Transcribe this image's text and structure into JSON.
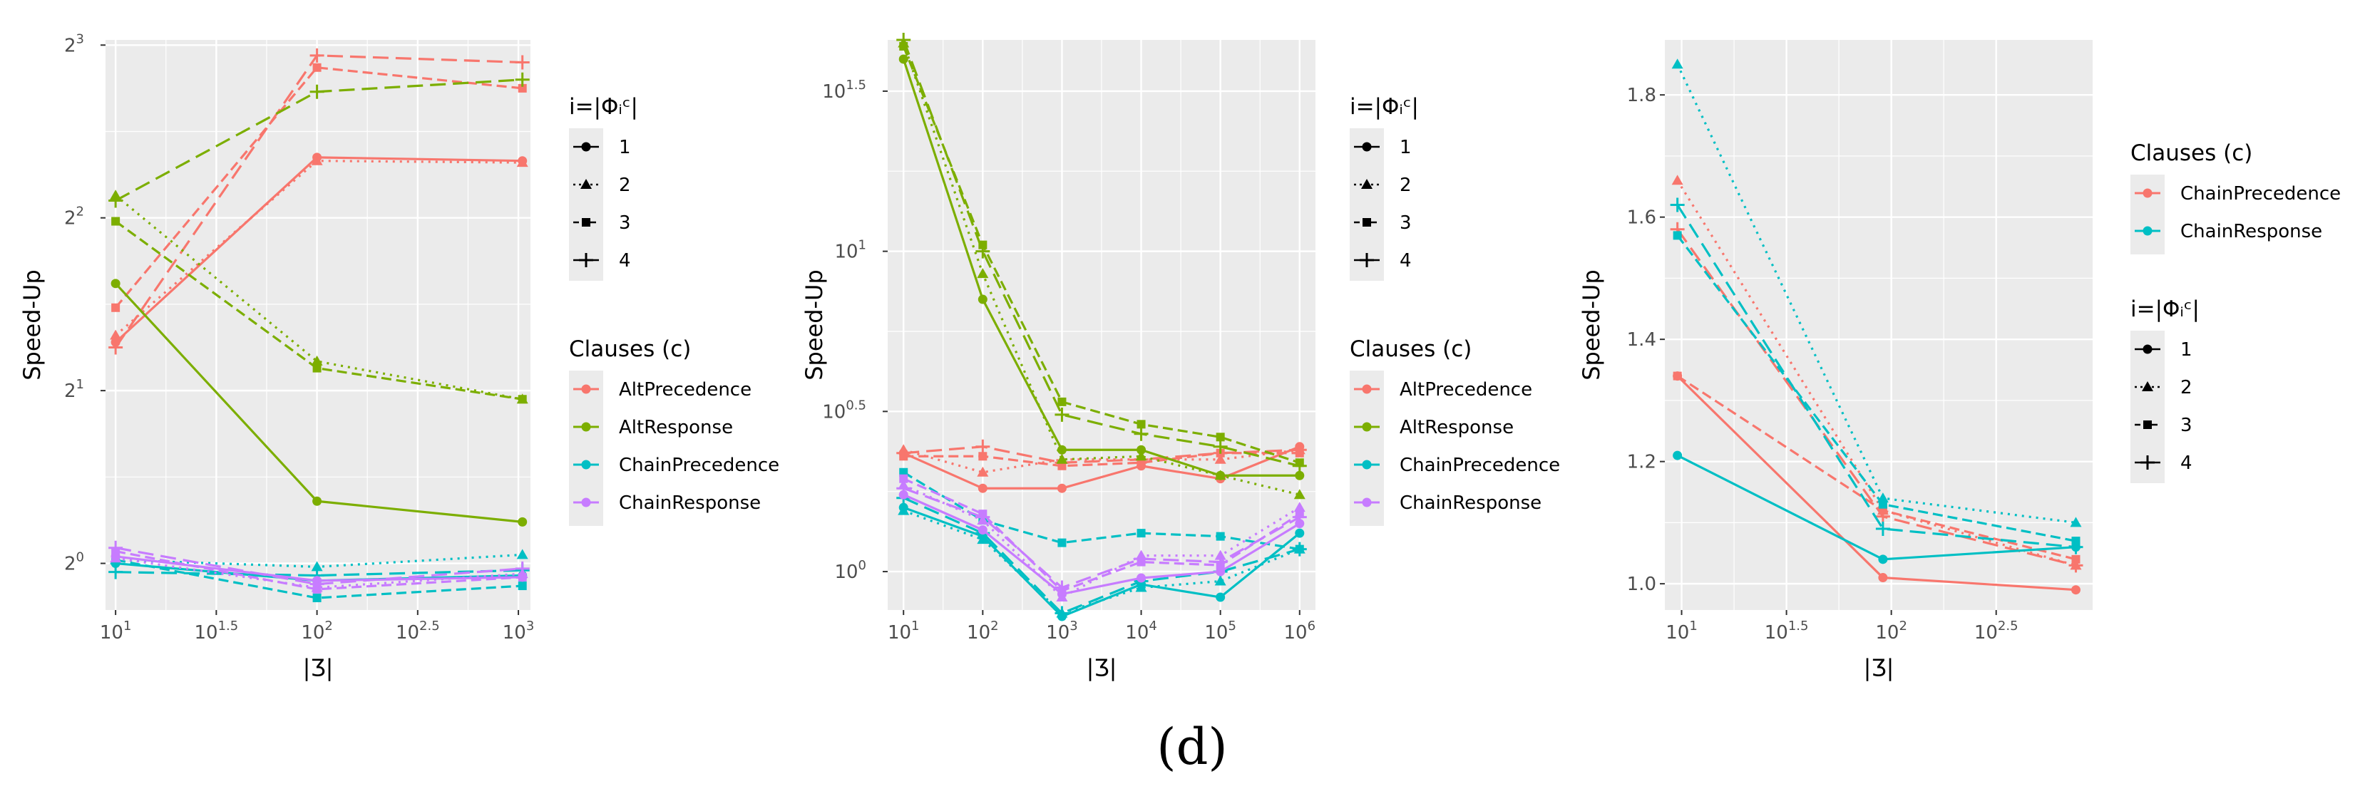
{
  "caption": "(d)",
  "legend_shapes_title": "i=|Φᵢᶜ|",
  "legend_clauses_title": "Clauses (c)",
  "colors": {
    "AltPrecedence": "#f8766d",
    "AltResponse": "#7cae00",
    "ChainPrecedence": "#00bfc4",
    "ChainResponse": "#c77cff",
    "ChainPrecedence_2": "#f8766d",
    "ChainResponse_2": "#00bfc4"
  },
  "chart_data": [
    {
      "type": "line",
      "ylabel": "Speed-Up",
      "xlabel": "|Ʒ|",
      "xscale": "log10",
      "yscale": "log2",
      "xlim": [
        0.95,
        3.06
      ],
      "ylim": [
        -0.27,
        3.03
      ],
      "x_ticks": [
        {
          "v": 1,
          "base": "10",
          "exp": "1"
        },
        {
          "v": 1.5,
          "base": "10",
          "exp": "1.5"
        },
        {
          "v": 2,
          "base": "10",
          "exp": "2"
        },
        {
          "v": 2.5,
          "base": "10",
          "exp": "2.5"
        },
        {
          "v": 3,
          "base": "10",
          "exp": "3"
        }
      ],
      "y_ticks": [
        {
          "v": 0,
          "base": "2",
          "exp": "0"
        },
        {
          "v": 1,
          "base": "2",
          "exp": "1"
        },
        {
          "v": 2,
          "base": "2",
          "exp": "2"
        },
        {
          "v": 3,
          "base": "2",
          "exp": "3"
        }
      ],
      "shapes_legend_position": "right-top",
      "clauses_legend_position": "right-middle",
      "shape_labels": [
        "1",
        "2",
        "3",
        "4"
      ],
      "clause_labels": [
        "AltPrecedence",
        "AltResponse",
        "ChainPrecedence",
        "ChainResponse"
      ],
      "series": [
        {
          "clause": "AltPrecedence",
          "i": 1,
          "x": [
            1.0,
            2.0,
            3.02
          ],
          "y": [
            1.28,
            2.35,
            2.33
          ]
        },
        {
          "clause": "AltPrecedence",
          "i": 2,
          "x": [
            1.0,
            2.0,
            3.02
          ],
          "y": [
            1.32,
            2.33,
            2.32
          ]
        },
        {
          "clause": "AltPrecedence",
          "i": 3,
          "x": [
            1.0,
            2.0,
            3.02
          ],
          "y": [
            1.48,
            2.87,
            2.75
          ]
        },
        {
          "clause": "AltPrecedence",
          "i": 4,
          "x": [
            1.0,
            2.0,
            3.02
          ],
          "y": [
            1.25,
            2.94,
            2.9
          ]
        },
        {
          "clause": "AltResponse",
          "i": 1,
          "x": [
            1.0,
            2.0,
            3.02
          ],
          "y": [
            1.62,
            0.36,
            0.24
          ]
        },
        {
          "clause": "AltResponse",
          "i": 2,
          "x": [
            1.0,
            2.0,
            3.02
          ],
          "y": [
            2.13,
            1.17,
            0.95
          ]
        },
        {
          "clause": "AltResponse",
          "i": 3,
          "x": [
            1.0,
            2.0,
            3.02
          ],
          "y": [
            1.98,
            1.13,
            0.95
          ]
        },
        {
          "clause": "AltResponse",
          "i": 4,
          "x": [
            1.0,
            2.0,
            3.02
          ],
          "y": [
            2.1,
            2.73,
            2.8
          ]
        },
        {
          "clause": "ChainPrecedence",
          "i": 1,
          "x": [
            1.0,
            2.0,
            3.02
          ],
          "y": [
            0.0,
            -0.1,
            -0.07
          ]
        },
        {
          "clause": "ChainPrecedence",
          "i": 2,
          "x": [
            1.0,
            2.0,
            3.02
          ],
          "y": [
            0.02,
            -0.02,
            0.05
          ]
        },
        {
          "clause": "ChainPrecedence",
          "i": 3,
          "x": [
            1.0,
            2.0,
            3.02
          ],
          "y": [
            0.02,
            -0.2,
            -0.13
          ]
        },
        {
          "clause": "ChainPrecedence",
          "i": 4,
          "x": [
            1.0,
            2.0,
            3.02
          ],
          "y": [
            -0.05,
            -0.07,
            -0.04
          ]
        },
        {
          "clause": "ChainResponse",
          "i": 1,
          "x": [
            1.0,
            2.0,
            3.02
          ],
          "y": [
            0.04,
            -0.1,
            -0.08
          ]
        },
        {
          "clause": "ChainResponse",
          "i": 2,
          "x": [
            1.0,
            2.0,
            3.02
          ],
          "y": [
            0.03,
            -0.14,
            -0.06
          ]
        },
        {
          "clause": "ChainResponse",
          "i": 3,
          "x": [
            1.0,
            2.0,
            3.02
          ],
          "y": [
            0.07,
            -0.15,
            -0.08
          ]
        },
        {
          "clause": "ChainResponse",
          "i": 4,
          "x": [
            1.0,
            2.0,
            3.02
          ],
          "y": [
            0.09,
            -0.12,
            -0.03
          ]
        }
      ]
    },
    {
      "type": "line",
      "ylabel": "Speed-Up",
      "xlabel": "|Ʒ|",
      "xscale": "log10",
      "yscale": "log10",
      "xlim": [
        0.8,
        6.2
      ],
      "ylim": [
        -0.12,
        1.66
      ],
      "x_ticks": [
        {
          "v": 1,
          "base": "10",
          "exp": "1"
        },
        {
          "v": 2,
          "base": "10",
          "exp": "2"
        },
        {
          "v": 3,
          "base": "10",
          "exp": "3"
        },
        {
          "v": 4,
          "base": "10",
          "exp": "4"
        },
        {
          "v": 5,
          "base": "10",
          "exp": "5"
        },
        {
          "v": 6,
          "base": "10",
          "exp": "6"
        }
      ],
      "y_ticks": [
        {
          "v": 0,
          "base": "10",
          "exp": "0"
        },
        {
          "v": 0.5,
          "base": "10",
          "exp": "0.5"
        },
        {
          "v": 1,
          "base": "10",
          "exp": "1"
        },
        {
          "v": 1.5,
          "base": "10",
          "exp": "1.5"
        }
      ],
      "shapes_legend_position": "right-top",
      "clauses_legend_position": "right-middle",
      "shape_labels": [
        "1",
        "2",
        "3",
        "4"
      ],
      "clause_labels": [
        "AltPrecedence",
        "AltResponse",
        "ChainPrecedence",
        "ChainResponse"
      ],
      "series": [
        {
          "clause": "AltPrecedence",
          "i": 1,
          "x": [
            1,
            2,
            3,
            4,
            5,
            6
          ],
          "y": [
            0.37,
            0.26,
            0.26,
            0.33,
            0.29,
            0.39
          ]
        },
        {
          "clause": "AltPrecedence",
          "i": 2,
          "x": [
            1,
            2,
            3,
            4,
            5,
            6
          ],
          "y": [
            0.38,
            0.31,
            0.35,
            0.35,
            0.35,
            0.38
          ]
        },
        {
          "clause": "AltPrecedence",
          "i": 3,
          "x": [
            1,
            2,
            3,
            4,
            5,
            6
          ],
          "y": [
            0.36,
            0.36,
            0.33,
            0.34,
            0.37,
            0.37
          ]
        },
        {
          "clause": "AltPrecedence",
          "i": 4,
          "x": [
            1,
            2,
            3,
            4,
            5,
            6
          ],
          "y": [
            0.37,
            0.39,
            0.34,
            0.35,
            0.37,
            0.38
          ]
        },
        {
          "clause": "AltResponse",
          "i": 1,
          "x": [
            1,
            2,
            3,
            4,
            5,
            6
          ],
          "y": [
            1.6,
            0.85,
            0.38,
            0.38,
            0.3,
            0.3
          ]
        },
        {
          "clause": "AltResponse",
          "i": 2,
          "x": [
            1,
            2,
            3,
            4,
            5,
            6
          ],
          "y": [
            1.65,
            0.93,
            0.35,
            0.36,
            0.3,
            0.24
          ]
        },
        {
          "clause": "AltResponse",
          "i": 3,
          "x": [
            1,
            2,
            3,
            4,
            5,
            6
          ],
          "y": [
            1.64,
            1.02,
            0.53,
            0.46,
            0.42,
            0.34
          ]
        },
        {
          "clause": "AltResponse",
          "i": 4,
          "x": [
            1,
            2,
            3,
            4,
            5,
            6
          ],
          "y": [
            1.66,
            1.0,
            0.49,
            0.43,
            0.39,
            0.33
          ]
        },
        {
          "clause": "ChainPrecedence",
          "i": 1,
          "x": [
            1,
            2,
            3,
            4,
            5,
            6
          ],
          "y": [
            0.2,
            0.11,
            -0.14,
            -0.04,
            -0.08,
            0.12
          ]
        },
        {
          "clause": "ChainPrecedence",
          "i": 2,
          "x": [
            1,
            2,
            3,
            4,
            5,
            6
          ],
          "y": [
            0.19,
            0.1,
            -0.13,
            -0.05,
            -0.03,
            0.07
          ]
        },
        {
          "clause": "ChainPrecedence",
          "i": 3,
          "x": [
            1,
            2,
            3,
            4,
            5,
            6
          ],
          "y": [
            0.31,
            0.16,
            0.09,
            0.12,
            0.11,
            0.07
          ]
        },
        {
          "clause": "ChainPrecedence",
          "i": 4,
          "x": [
            1,
            2,
            3,
            4,
            5,
            6
          ],
          "y": [
            0.23,
            0.12,
            -0.13,
            -0.03,
            0.0,
            0.07
          ]
        },
        {
          "clause": "ChainResponse",
          "i": 1,
          "x": [
            1,
            2,
            3,
            4,
            5,
            6
          ],
          "y": [
            0.24,
            0.13,
            -0.07,
            -0.02,
            0.0,
            0.15
          ]
        },
        {
          "clause": "ChainResponse",
          "i": 2,
          "x": [
            1,
            2,
            3,
            4,
            5,
            6
          ],
          "y": [
            0.27,
            0.16,
            -0.08,
            0.05,
            0.05,
            0.2
          ]
        },
        {
          "clause": "ChainResponse",
          "i": 3,
          "x": [
            1,
            2,
            3,
            4,
            5,
            6
          ],
          "y": [
            0.29,
            0.18,
            -0.06,
            0.03,
            0.02,
            0.18
          ]
        },
        {
          "clause": "ChainResponse",
          "i": 4,
          "x": [
            1,
            2,
            3,
            4,
            5,
            6
          ],
          "y": [
            0.26,
            0.17,
            -0.05,
            0.04,
            0.03,
            0.17
          ]
        }
      ]
    },
    {
      "type": "line",
      "ylabel": "Speed-Up",
      "xlabel": "|Ʒ|",
      "xscale": "log10",
      "yscale": "linear",
      "xlim": [
        0.92,
        2.96
      ],
      "ylim": [
        0.957,
        1.89
      ],
      "x_ticks": [
        {
          "v": 1,
          "base": "10",
          "exp": "1"
        },
        {
          "v": 1.5,
          "base": "10",
          "exp": "1.5"
        },
        {
          "v": 2,
          "base": "10",
          "exp": "2"
        },
        {
          "v": 2.5,
          "base": "10",
          "exp": "2.5"
        }
      ],
      "y_ticks": [
        {
          "v": 1.0,
          "label": "1.0"
        },
        {
          "v": 1.2,
          "label": "1.2"
        },
        {
          "v": 1.4,
          "label": "1.4"
        },
        {
          "v": 1.6,
          "label": "1.6"
        },
        {
          "v": 1.8,
          "label": "1.8"
        }
      ],
      "clauses_legend_position": "right-top",
      "shapes_legend_position": "right-middle",
      "shape_labels": [
        "1",
        "2",
        "3",
        "4"
      ],
      "clause_labels": [
        "ChainPrecedence",
        "ChainResponse"
      ],
      "series": [
        {
          "clause": "ChainPrecedence",
          "i": 1,
          "x": [
            0.98,
            1.96,
            2.88
          ],
          "y": [
            1.34,
            1.01,
            0.99
          ]
        },
        {
          "clause": "ChainPrecedence",
          "i": 2,
          "x": [
            0.98,
            1.96,
            2.88
          ],
          "y": [
            1.66,
            1.12,
            1.03
          ]
        },
        {
          "clause": "ChainPrecedence",
          "i": 3,
          "x": [
            0.98,
            1.96,
            2.88
          ],
          "y": [
            1.34,
            1.12,
            1.04
          ]
        },
        {
          "clause": "ChainPrecedence",
          "i": 4,
          "x": [
            0.98,
            1.96,
            2.88
          ],
          "y": [
            1.58,
            1.11,
            1.03
          ]
        },
        {
          "clause": "ChainResponse",
          "i": 1,
          "x": [
            0.98,
            1.96,
            2.88
          ],
          "y": [
            1.21,
            1.04,
            1.06
          ]
        },
        {
          "clause": "ChainResponse",
          "i": 2,
          "x": [
            0.98,
            1.96,
            2.88
          ],
          "y": [
            1.85,
            1.14,
            1.1
          ]
        },
        {
          "clause": "ChainResponse",
          "i": 3,
          "x": [
            0.98,
            1.96,
            2.88
          ],
          "y": [
            1.57,
            1.13,
            1.07
          ]
        },
        {
          "clause": "ChainResponse",
          "i": 4,
          "x": [
            0.98,
            1.96,
            2.88
          ],
          "y": [
            1.62,
            1.09,
            1.06
          ]
        }
      ]
    }
  ]
}
